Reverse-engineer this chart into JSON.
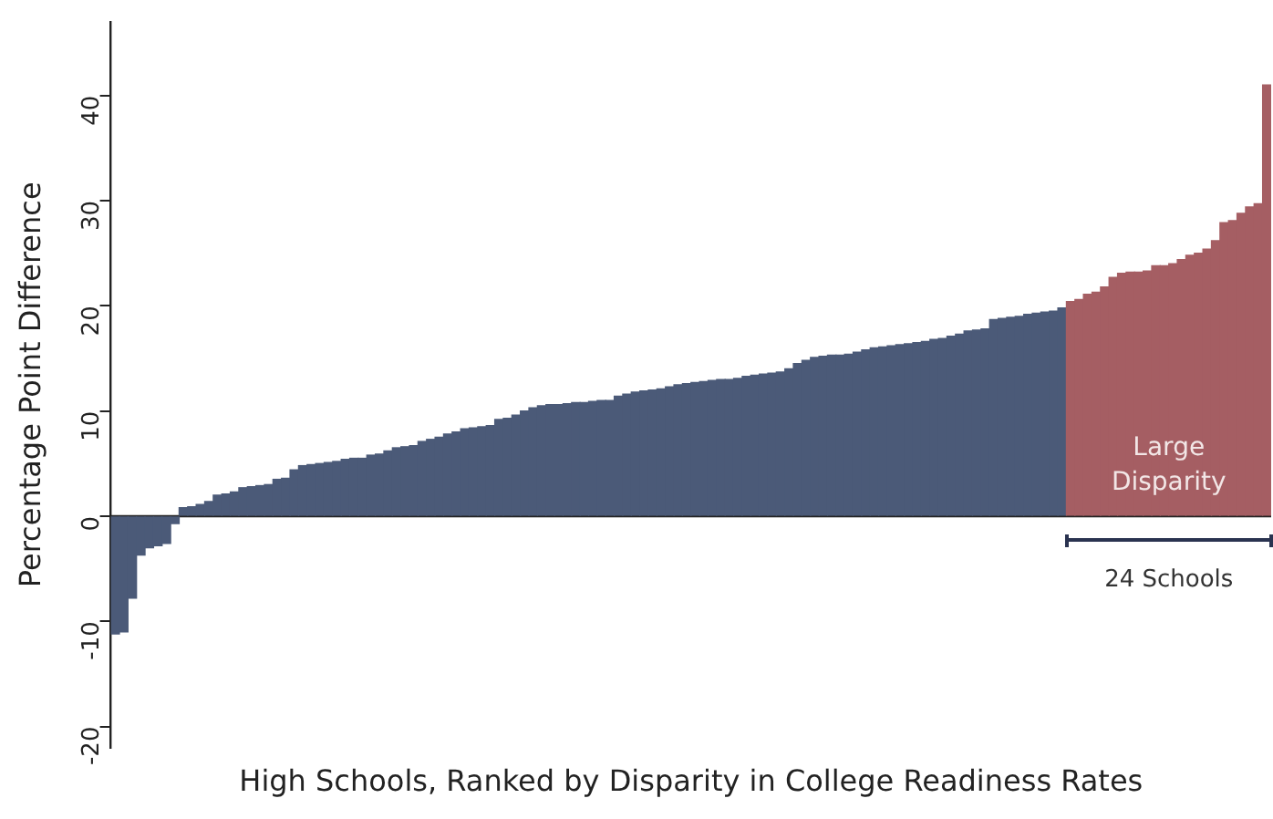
{
  "chart_data": {
    "type": "bar",
    "xlabel": "High Schools, Ranked by Disparity in College Readiness Rates",
    "ylabel": "Percentage Point Difference",
    "categories": [
      null,
      null,
      null,
      null,
      null,
      null,
      null,
      null,
      null,
      null,
      null,
      null,
      null,
      null,
      null,
      null,
      null,
      null,
      null,
      null,
      null,
      null,
      null,
      null,
      null,
      null,
      null,
      null,
      null,
      null,
      null,
      null,
      null,
      null,
      null,
      null,
      null,
      null,
      null,
      null,
      null,
      null,
      null,
      null,
      null,
      null,
      null,
      null,
      null,
      null,
      null,
      null,
      null,
      null,
      null,
      null,
      null,
      null,
      null,
      null,
      null,
      null,
      null,
      null,
      null,
      null,
      null,
      null,
      null,
      null,
      null,
      null,
      null,
      null,
      null,
      null,
      null,
      null,
      null,
      null,
      null,
      null,
      null,
      null,
      null,
      null,
      null,
      null,
      null,
      null,
      null,
      null,
      null,
      null,
      null,
      null,
      null,
      null,
      null,
      null,
      null,
      null,
      null,
      null,
      null,
      null,
      null,
      null,
      null,
      null,
      null,
      null,
      null,
      null,
      null,
      null,
      null,
      null,
      null,
      null,
      null,
      null,
      null,
      null,
      null,
      null,
      null,
      null,
      null,
      null,
      null,
      null,
      null,
      null,
      null,
      null
    ],
    "values": [
      -11.2,
      -11.0,
      -7.8,
      -3.7,
      -3.0,
      -2.8,
      -2.6,
      -0.7,
      0.8,
      0.9,
      1.1,
      1.4,
      2.0,
      2.1,
      2.3,
      2.7,
      2.8,
      2.9,
      3.0,
      3.5,
      3.6,
      4.4,
      4.8,
      4.9,
      5.0,
      5.1,
      5.2,
      5.4,
      5.5,
      5.5,
      5.8,
      5.9,
      6.2,
      6.5,
      6.6,
      6.7,
      7.1,
      7.3,
      7.5,
      7.8,
      8.0,
      8.3,
      8.4,
      8.5,
      8.6,
      9.2,
      9.3,
      9.6,
      10.0,
      10.3,
      10.5,
      10.6,
      10.6,
      10.7,
      10.8,
      10.8,
      10.9,
      11.0,
      11.0,
      11.4,
      11.6,
      11.8,
      11.9,
      12.0,
      12.1,
      12.3,
      12.5,
      12.6,
      12.7,
      12.8,
      12.9,
      13.0,
      13.0,
      13.1,
      13.3,
      13.4,
      13.5,
      13.6,
      13.7,
      14.0,
      14.5,
      14.8,
      15.1,
      15.2,
      15.3,
      15.3,
      15.4,
      15.6,
      15.8,
      16.0,
      16.1,
      16.2,
      16.3,
      16.4,
      16.5,
      16.6,
      16.8,
      16.9,
      17.1,
      17.3,
      17.6,
      17.7,
      17.8,
      18.7,
      18.8,
      18.9,
      19.0,
      19.2,
      19.3,
      19.4,
      19.5,
      19.8,
      20.4,
      20.6,
      21.1,
      21.3,
      21.8,
      22.7,
      23.1,
      23.2,
      23.2,
      23.3,
      23.8,
      23.8,
      24.0,
      24.4,
      24.8,
      25.0,
      25.4,
      26.2,
      27.9,
      28.1,
      28.8,
      29.4,
      29.7,
      41.0
    ],
    "colors": [
      "#4b5a78",
      "#4b5a78",
      "#4b5a78",
      "#4b5a78",
      "#4b5a78",
      "#4b5a78",
      "#4b5a78",
      "#4b5a78",
      "#4b5a78",
      "#4b5a78",
      "#4b5a78",
      "#4b5a78",
      "#4b5a78",
      "#4b5a78",
      "#4b5a78",
      "#4b5a78",
      "#4b5a78",
      "#4b5a78",
      "#4b5a78",
      "#4b5a78",
      "#4b5a78",
      "#4b5a78",
      "#4b5a78",
      "#4b5a78",
      "#4b5a78",
      "#4b5a78",
      "#4b5a78",
      "#4b5a78",
      "#4b5a78",
      "#4b5a78",
      "#4b5a78",
      "#4b5a78",
      "#4b5a78",
      "#4b5a78",
      "#4b5a78",
      "#4b5a78",
      "#4b5a78",
      "#4b5a78",
      "#4b5a78",
      "#4b5a78",
      "#4b5a78",
      "#4b5a78",
      "#4b5a78",
      "#4b5a78",
      "#4b5a78",
      "#4b5a78",
      "#4b5a78",
      "#4b5a78",
      "#4b5a78",
      "#4b5a78",
      "#4b5a78",
      "#4b5a78",
      "#4b5a78",
      "#4b5a78",
      "#4b5a78",
      "#4b5a78",
      "#4b5a78",
      "#4b5a78",
      "#4b5a78",
      "#4b5a78",
      "#4b5a78",
      "#4b5a78",
      "#4b5a78",
      "#4b5a78",
      "#4b5a78",
      "#4b5a78",
      "#4b5a78",
      "#4b5a78",
      "#4b5a78",
      "#4b5a78",
      "#4b5a78",
      "#4b5a78",
      "#4b5a78",
      "#4b5a78",
      "#4b5a78",
      "#4b5a78",
      "#4b5a78",
      "#4b5a78",
      "#4b5a78",
      "#4b5a78",
      "#4b5a78",
      "#4b5a78",
      "#4b5a78",
      "#4b5a78",
      "#4b5a78",
      "#4b5a78",
      "#4b5a78",
      "#4b5a78",
      "#4b5a78",
      "#4b5a78",
      "#4b5a78",
      "#4b5a78",
      "#4b5a78",
      "#4b5a78",
      "#4b5a78",
      "#4b5a78",
      "#4b5a78",
      "#4b5a78",
      "#4b5a78",
      "#4b5a78",
      "#4b5a78",
      "#4b5a78",
      "#4b5a78",
      "#4b5a78",
      "#4b5a78",
      "#4b5a78",
      "#4b5a78",
      "#4b5a78",
      "#4b5a78",
      "#4b5a78",
      "#4b5a78",
      "#4b5a78",
      "#a55e63",
      "#a55e63",
      "#a55e63",
      "#a55e63",
      "#a55e63",
      "#a55e63",
      "#a55e63",
      "#a55e63",
      "#a55e63",
      "#a55e63",
      "#a55e63",
      "#a55e63",
      "#a55e63",
      "#a55e63",
      "#a55e63",
      "#a55e63",
      "#a55e63",
      "#a55e63",
      "#a55e63",
      "#a55e63",
      "#a55e63",
      "#a55e63",
      "#a55e63",
      "#a55e63"
    ],
    "ylim": [
      -22,
      47
    ],
    "yticks": [
      -20,
      -10,
      0,
      10,
      20,
      30,
      40
    ],
    "ref_lines": [
      {
        "axis": "y",
        "value": 0,
        "color": "#222222"
      }
    ],
    "annotations": [
      "Large Disparity",
      "24 Schools"
    ]
  }
}
